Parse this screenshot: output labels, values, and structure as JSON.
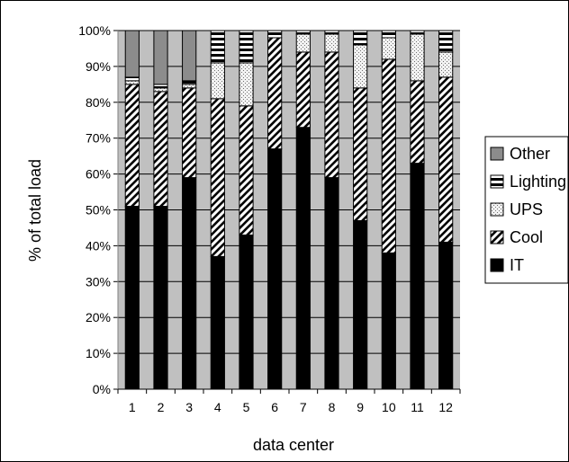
{
  "chart_data": {
    "type": "bar",
    "stacked": true,
    "percent": true,
    "title": "",
    "xlabel": "data center",
    "ylabel": "% of total load",
    "ylim": [
      0,
      100
    ],
    "yticks": [
      "0%",
      "10%",
      "20%",
      "30%",
      "40%",
      "50%",
      "60%",
      "70%",
      "80%",
      "90%",
      "100%"
    ],
    "categories": [
      "1",
      "2",
      "3",
      "4",
      "5",
      "6",
      "7",
      "8",
      "9",
      "10",
      "11",
      "12"
    ],
    "series": [
      {
        "name": "IT",
        "values": [
          51,
          51,
          59,
          37,
          43,
          67,
          73,
          59,
          47,
          38,
          63,
          41
        ]
      },
      {
        "name": "Cool",
        "values": [
          34,
          32,
          25,
          44,
          36,
          31,
          21,
          35,
          37,
          54,
          23,
          46
        ]
      },
      {
        "name": "UPS",
        "values": [
          1,
          1,
          1,
          10,
          12,
          0,
          5,
          5,
          12,
          6,
          13,
          7
        ]
      },
      {
        "name": "Lighting",
        "values": [
          1,
          1,
          1,
          9,
          9,
          2,
          1,
          1,
          4,
          2,
          1,
          6
        ]
      },
      {
        "name": "Other",
        "values": [
          13,
          15,
          14,
          0,
          0,
          0,
          0,
          0,
          0,
          0,
          0,
          0
        ]
      }
    ],
    "grid": true,
    "legend": "right",
    "colors": {
      "IT": "#000000",
      "Cool": "#ffffff",
      "UPS": "#e8e8e8",
      "Lighting": "#ffffff",
      "Other": "#8c8c8c",
      "plot_background": "#c0c0c0"
    }
  }
}
